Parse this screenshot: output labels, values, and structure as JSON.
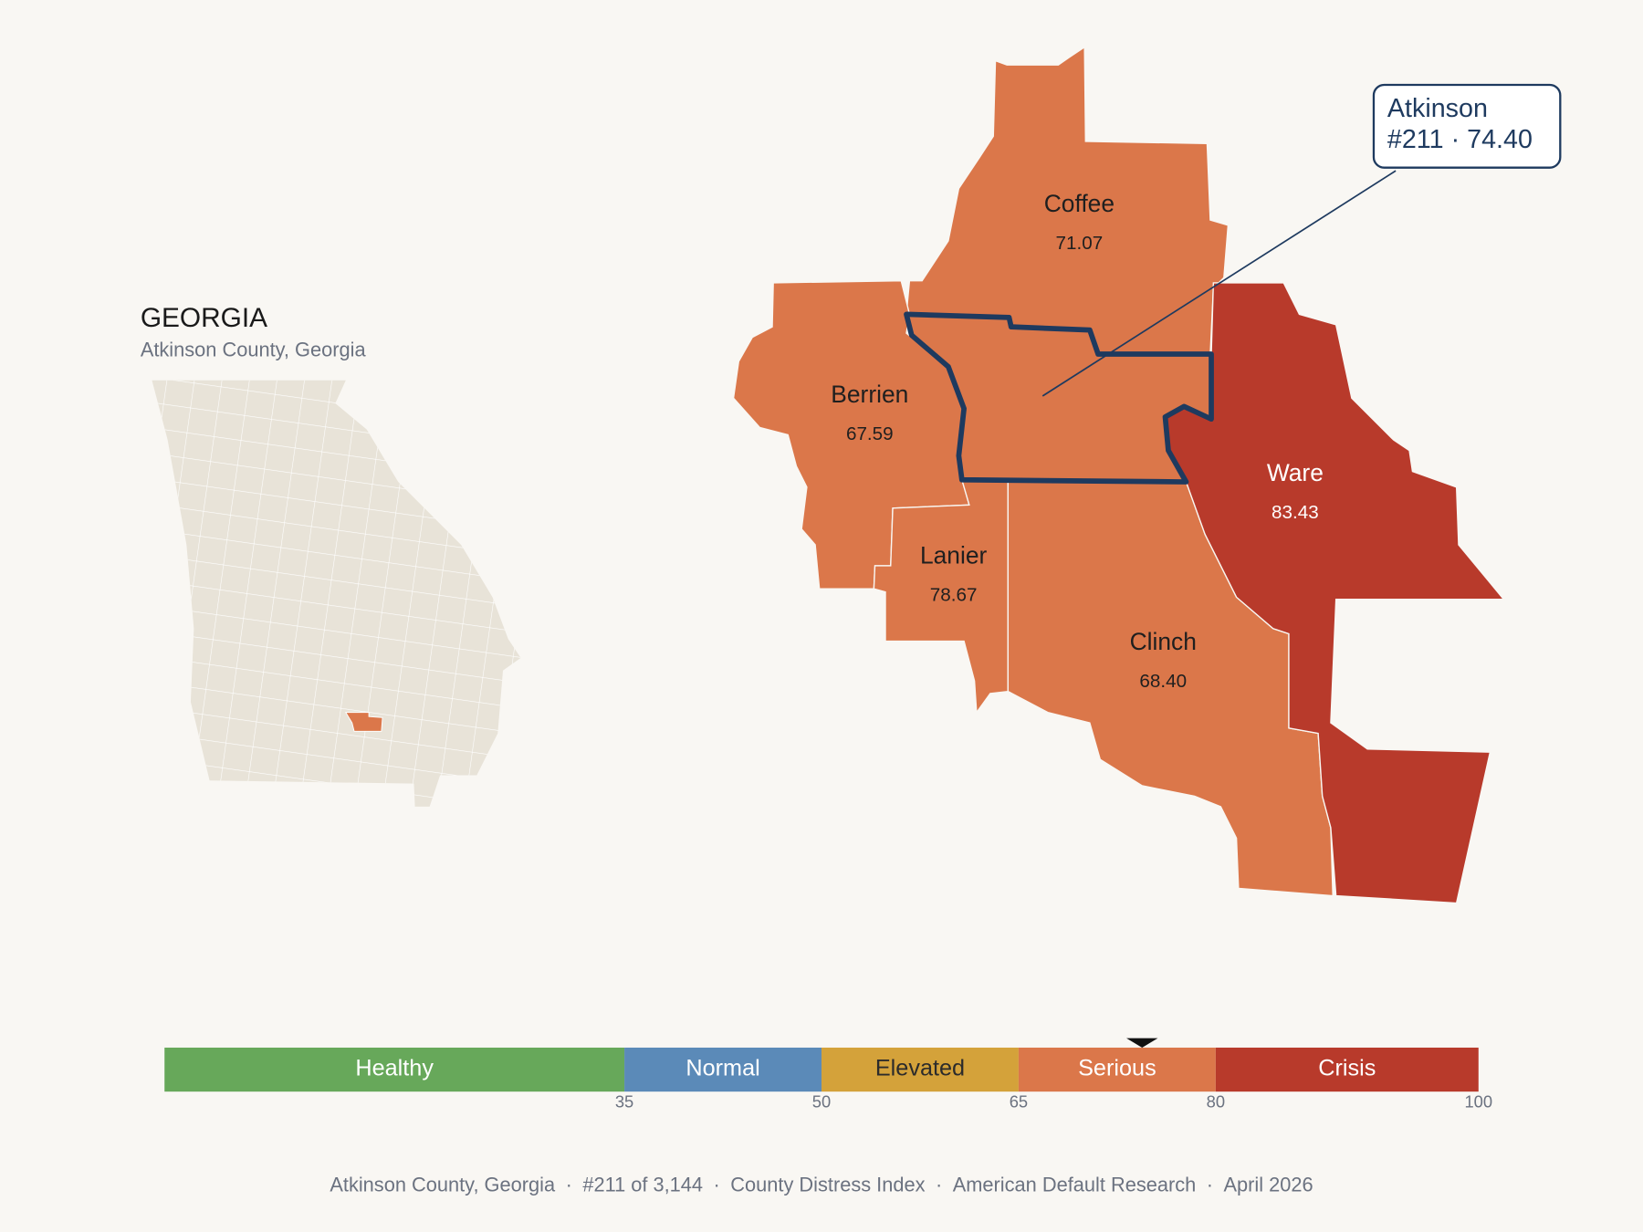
{
  "header": {
    "title": "GEORGIA",
    "subtitle": "Atkinson County, Georgia"
  },
  "counties": [
    {
      "name": "Coffee",
      "score": 71.07
    },
    {
      "name": "Berrien",
      "score": 67.59
    },
    {
      "name": "Lanier",
      "score": 78.67
    },
    {
      "name": "Clinch",
      "score": {
        "value": 68.4,
        "label": "68.40"
      }
    },
    {
      "name": "Ware",
      "score": 83.43
    }
  ],
  "callout": {
    "name": "Atkinson",
    "rank": "#211",
    "separator": "·",
    "score": {
      "value": 74.4,
      "label": "74.40"
    }
  },
  "legend": {
    "min": 0,
    "bands": [
      {
        "label": "Healthy",
        "color": "#67a85a",
        "text_color": "#ffffff"
      },
      {
        "label": "Normal",
        "color": "#5b8ab8",
        "text_color": "#ffffff"
      },
      {
        "label": "Elevated",
        "color": "#d4a23a",
        "text_color": "#2b2b2b"
      },
      {
        "label": "Serious",
        "color": "#db774a",
        "text_color": "#ffffff"
      },
      {
        "label": "Crisis",
        "color": "#b83a2b",
        "text_color": "#ffffff"
      }
    ],
    "ticks": [
      35,
      50,
      65,
      80,
      100
    ]
  },
  "footer": {
    "separator": "·",
    "items": [
      "Atkinson County, Georgia",
      "#211 of 3,144",
      "County Distress Index",
      "American Default Research",
      "April 2026"
    ]
  }
}
